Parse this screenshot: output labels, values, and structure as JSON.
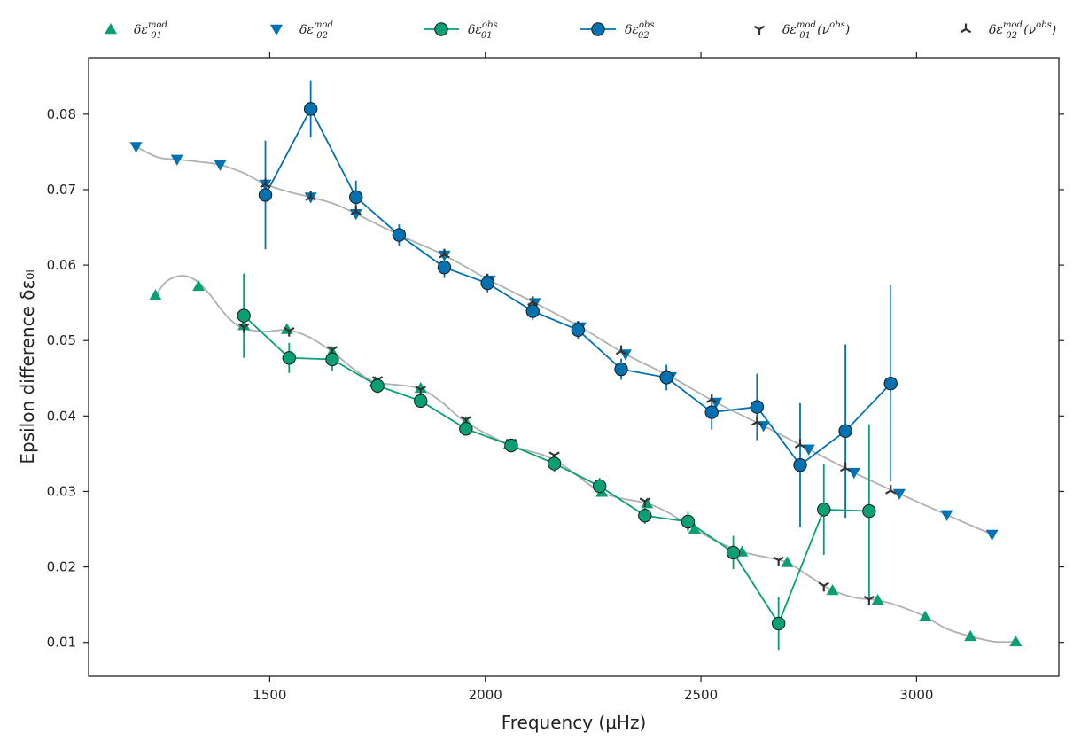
{
  "chart_data": {
    "type": "scatter",
    "title": "",
    "xlabel": "Frequency (μHz)",
    "ylabel": "Epsilon difference δε₀ₗ",
    "xlim": [
      1080,
      3330
    ],
    "ylim": [
      0.0055,
      0.0875
    ],
    "xticks": [
      1500,
      2000,
      2500,
      3000
    ],
    "yticks": [
      0.01,
      0.02,
      0.03,
      0.04,
      0.05,
      0.06,
      0.07,
      0.08
    ],
    "ytick_labels": [
      "0.01",
      "0.02",
      "0.03",
      "0.04",
      "0.05",
      "0.06",
      "0.07",
      "0.08"
    ],
    "grid": false,
    "legend_position": "top",
    "series": [
      {
        "key": "mod01",
        "legend": {
          "base": "δε",
          "sub": "01",
          "sup": "mod",
          "suffix": ""
        },
        "color": "#079f73",
        "marker": "triangle-up",
        "x": [
          1235,
          1335,
          1440,
          1540,
          1645,
          1745,
          1850,
          1955,
          2055,
          2160,
          2270,
          2375,
          2485,
          2595,
          2700,
          2805,
          2910,
          3020,
          3125,
          3230
        ],
        "y": [
          0.056,
          0.0572,
          0.052,
          0.0515,
          0.0485,
          0.0445,
          0.0437,
          0.0392,
          0.0362,
          0.0342,
          0.0299,
          0.0284,
          0.025,
          0.022,
          0.0206,
          0.0169,
          0.0156,
          0.0134,
          0.0108,
          0.0101
        ]
      },
      {
        "key": "mod02",
        "legend": {
          "base": "δε",
          "sub": "02",
          "sup": "mod",
          "suffix": ""
        },
        "color": "#0072b2",
        "marker": "triangle-down",
        "x": [
          1190,
          1285,
          1385,
          1490,
          1595,
          1700,
          1800,
          1905,
          2010,
          2115,
          2220,
          2325,
          2430,
          2535,
          2645,
          2750,
          2855,
          2960,
          3070,
          3175
        ],
        "y": [
          0.0757,
          0.074,
          0.0733,
          0.0707,
          0.069,
          0.0668,
          0.064,
          0.0613,
          0.058,
          0.055,
          0.0518,
          0.0482,
          0.0452,
          0.0418,
          0.0387,
          0.0356,
          0.0325,
          0.0297,
          0.0269,
          0.0243
        ]
      },
      {
        "key": "obs01",
        "legend": {
          "base": "δε",
          "sub": "01",
          "sup": "obs",
          "suffix": ""
        },
        "color": "#079f73",
        "marker": "circle",
        "x": [
          1440,
          1545,
          1645,
          1750,
          1850,
          1955,
          2060,
          2160,
          2265,
          2370,
          2470,
          2575,
          2680,
          2785,
          2890
        ],
        "y": [
          0.0533,
          0.0477,
          0.0475,
          0.044,
          0.042,
          0.0383,
          0.0361,
          0.0337,
          0.0307,
          0.0268,
          0.026,
          0.0219,
          0.0125,
          0.0276,
          0.0274
        ],
        "yerr": [
          0.0056,
          0.002,
          0.0015,
          0.001,
          0.0009,
          0.0009,
          0.0009,
          0.0011,
          0.0011,
          0.0011,
          0.0013,
          0.0022,
          0.0035,
          0.006,
          0.0115
        ]
      },
      {
        "key": "obs02",
        "legend": {
          "base": "δε",
          "sub": "02",
          "sup": "obs",
          "suffix": ""
        },
        "color": "#0072b2",
        "marker": "circle",
        "x": [
          1490,
          1595,
          1700,
          1800,
          1905,
          2005,
          2110,
          2215,
          2315,
          2420,
          2525,
          2630,
          2730,
          2835,
          2940
        ],
        "y": [
          0.0693,
          0.0807,
          0.069,
          0.064,
          0.0597,
          0.0576,
          0.0539,
          0.0514,
          0.0462,
          0.0451,
          0.0405,
          0.0412,
          0.0335,
          0.038,
          0.0443
        ],
        "yerr": [
          0.0072,
          0.0038,
          0.0022,
          0.0014,
          0.0014,
          0.0012,
          0.0012,
          0.0012,
          0.0014,
          0.0017,
          0.0023,
          0.0044,
          0.0082,
          0.0115,
          0.013
        ]
      },
      {
        "key": "int01",
        "legend": {
          "base": "δε",
          "sub": "01",
          "sup": "mod",
          "suffix": "(ν",
          "suffix_sup": "obs",
          "suffix_end": ")"
        },
        "color": "#333333",
        "marker": "tri-up",
        "x": [
          1440,
          1545,
          1645,
          1750,
          1850,
          1955,
          2060,
          2160,
          2265,
          2370,
          2470,
          2575,
          2680,
          2785,
          2890
        ],
        "y": [
          0.0518,
          0.0513,
          0.0488,
          0.0448,
          0.0435,
          0.0395,
          0.0365,
          0.0348,
          0.0308,
          0.0287,
          0.0257,
          0.0219,
          0.0209,
          0.0175,
          0.0157
        ]
      },
      {
        "key": "int02",
        "legend": {
          "base": "δε",
          "sub": "02",
          "sup": "mod",
          "suffix": "(ν",
          "suffix_sup": "obs",
          "suffix_end": ")"
        },
        "color": "#333333",
        "marker": "tri-down",
        "x": [
          1490,
          1595,
          1700,
          1800,
          1905,
          2005,
          2110,
          2215,
          2315,
          2420,
          2525,
          2630,
          2730,
          2835,
          2940
        ],
        "y": [
          0.0707,
          0.069,
          0.0671,
          0.0641,
          0.0614,
          0.0581,
          0.0551,
          0.0518,
          0.0486,
          0.0454,
          0.0422,
          0.0392,
          0.0362,
          0.0331,
          0.0301
        ]
      }
    ],
    "smooth_curves": [
      {
        "key": "curve01",
        "color": "#b0b0b0",
        "x": [
          1235,
          1260,
          1285,
          1310,
          1335,
          1360,
          1385,
          1410,
          1440,
          1490,
          1540,
          1590,
          1645,
          1700,
          1745,
          1800,
          1850,
          1900,
          1955,
          2055,
          2160,
          2270,
          2375,
          2430,
          2485,
          2540,
          2595,
          2650,
          2700,
          2750,
          2805,
          2860,
          2910,
          2965,
          3020,
          3070,
          3125,
          3180,
          3230
        ],
        "y": [
          0.056,
          0.0578,
          0.0585,
          0.0585,
          0.0577,
          0.0562,
          0.0543,
          0.0527,
          0.0516,
          0.0512,
          0.0514,
          0.0505,
          0.0485,
          0.046,
          0.0445,
          0.0441,
          0.0436,
          0.0418,
          0.0392,
          0.0362,
          0.0342,
          0.0299,
          0.0284,
          0.027,
          0.025,
          0.0233,
          0.022,
          0.0213,
          0.0206,
          0.0188,
          0.0169,
          0.0159,
          0.0156,
          0.0147,
          0.0134,
          0.0118,
          0.0108,
          0.0101,
          0.0101
        ]
      },
      {
        "key": "curve02",
        "color": "#b0b0b0",
        "x": [
          1190,
          1240,
          1285,
          1335,
          1385,
          1440,
          1490,
          1545,
          1595,
          1650,
          1700,
          1800,
          1905,
          2010,
          2115,
          2220,
          2325,
          2430,
          2535,
          2645,
          2750,
          2855,
          2960,
          3070,
          3175
        ],
        "y": [
          0.0757,
          0.0743,
          0.074,
          0.0737,
          0.0733,
          0.0722,
          0.0707,
          0.0697,
          0.069,
          0.0681,
          0.0668,
          0.064,
          0.0613,
          0.058,
          0.055,
          0.0518,
          0.0482,
          0.0452,
          0.0418,
          0.0387,
          0.0356,
          0.0325,
          0.0297,
          0.0269,
          0.0243
        ]
      }
    ]
  }
}
